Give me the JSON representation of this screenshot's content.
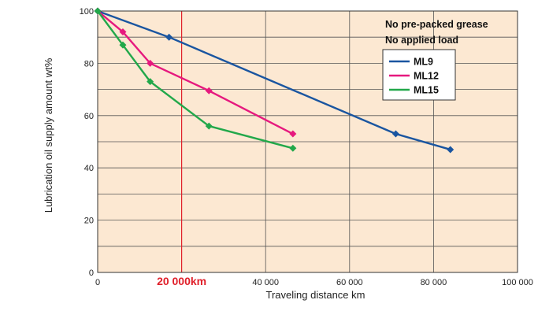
{
  "chart_data": {
    "type": "line",
    "xlabel": "Traveling distance  km",
    "ylabel": "Lubrication oil supply amount  wt%",
    "xlim": [
      0,
      100000
    ],
    "ylim": [
      0,
      100
    ],
    "x_ticks": [
      0,
      20000,
      40000,
      60000,
      80000,
      100000
    ],
    "x_tick_labels": [
      "0",
      "",
      "40 000",
      "60 000",
      "80 000",
      "100 000"
    ],
    "y_ticks": [
      0,
      20,
      40,
      60,
      80,
      100
    ],
    "y_tick_labels": [
      "0",
      "20",
      "40",
      "60",
      "80",
      "100"
    ],
    "grid": true,
    "background_color": "#fce8d2",
    "legend_position": "top-right",
    "notes": [
      "No pre-packed grease",
      "No applied load"
    ],
    "marker_line": {
      "x": 20000,
      "label": "20 000km",
      "color": "#e0202a"
    },
    "series": [
      {
        "name": "ML9",
        "color": "#1a55a0",
        "x": [
          0,
          17000,
          71000,
          84000
        ],
        "y": [
          100,
          90,
          53,
          47
        ]
      },
      {
        "name": "ML12",
        "color": "#e6197e",
        "x": [
          0,
          6000,
          12500,
          26500,
          46500
        ],
        "y": [
          100,
          92,
          80,
          69.5,
          53
        ]
      },
      {
        "name": "ML15",
        "color": "#22a84a",
        "x": [
          0,
          6000,
          12500,
          26500,
          46500
        ],
        "y": [
          100,
          87,
          73,
          56,
          47.5
        ]
      }
    ]
  }
}
